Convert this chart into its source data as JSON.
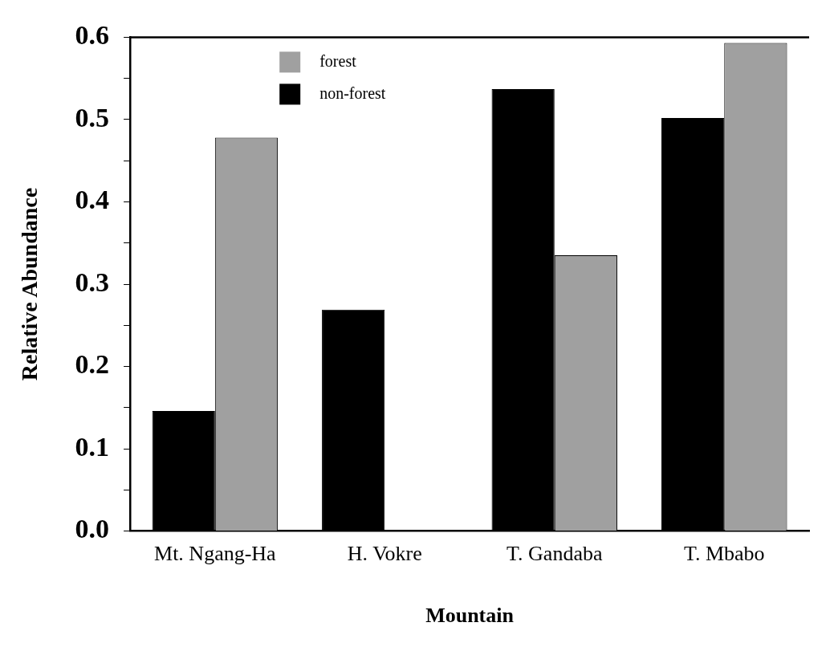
{
  "chart_data": {
    "type": "bar",
    "xlabel": "Mountain",
    "ylabel": "Relative Abundance",
    "categories": [
      "Mt. Ngang-Ha",
      "H. Vokre",
      "T. Gandaba",
      "T. Mbabo"
    ],
    "series": [
      {
        "name": "non-forest",
        "color": "#000000",
        "values": [
          0.146,
          0.269,
          0.537,
          0.502
        ]
      },
      {
        "name": "forest",
        "color": "#a0a0a0",
        "values": [
          0.478,
          0,
          0.335,
          0.593
        ]
      }
    ],
    "ylim": [
      0,
      0.6
    ],
    "yticks": [
      {
        "value": 0,
        "label": "0.0"
      },
      {
        "value": 0.05,
        "label": null
      },
      {
        "value": 0.1,
        "label": "0.1"
      },
      {
        "value": 0.15,
        "label": null
      },
      {
        "value": 0.2,
        "label": "0.2"
      },
      {
        "value": 0.25,
        "label": null
      },
      {
        "value": 0.3,
        "label": "0.3"
      },
      {
        "value": 0.35,
        "label": null
      },
      {
        "value": 0.4,
        "label": "0.4"
      },
      {
        "value": 0.45,
        "label": null
      },
      {
        "value": 0.5,
        "label": "0.5"
      },
      {
        "value": 0.55,
        "label": null
      },
      {
        "value": 0.6,
        "label": "0.6"
      }
    ],
    "legend": "top left"
  }
}
